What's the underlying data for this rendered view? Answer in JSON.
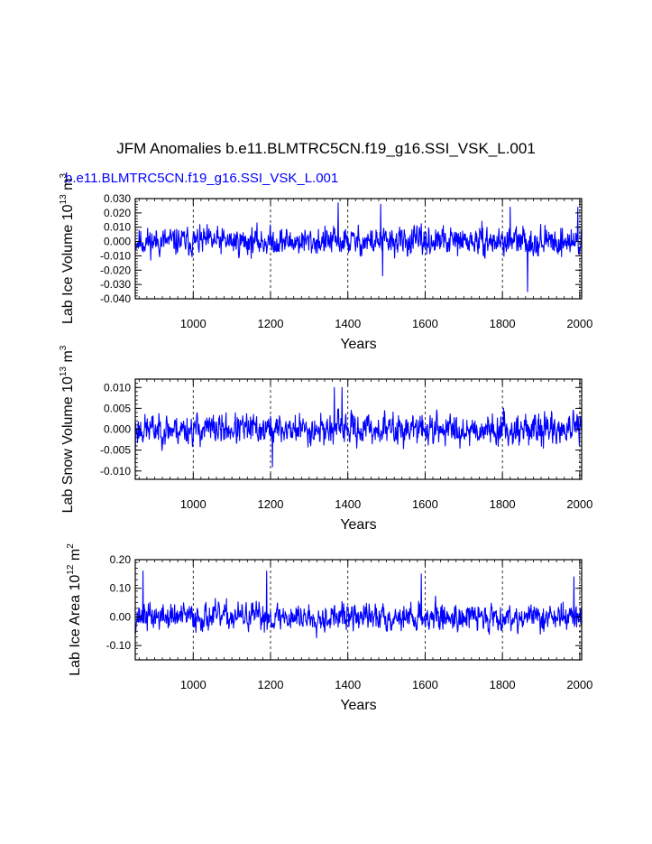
{
  "title": "JFM Anomalies b.e11.BLMTRC5CN.f19_g16.SSI_VSK_L.001",
  "run_label": "b.e11.BLMTRC5CN.f19_g16.SSI_VSK_L.001",
  "colors": {
    "series": "#0000ff",
    "axis": "#000000",
    "grid": "#000000",
    "background": "#ffffff"
  },
  "chart_data": [
    {
      "type": "line",
      "xlabel": "Years",
      "ylabel_prefix": "Lab Ice Volume 10",
      "ylabel_exp": "13",
      "ylabel_unit": "m",
      "ylabel_unit_exp": "3",
      "xlim": [
        850,
        2005
      ],
      "ylim": [
        -0.04,
        0.03
      ],
      "xticks": [
        1000,
        1200,
        1400,
        1600,
        1800,
        2000
      ],
      "yticks": [
        "0.030",
        "0.020",
        "0.010",
        "0.000",
        "-0.010",
        "-0.020",
        "-0.030",
        "-0.040"
      ],
      "ytick_values": [
        0.03,
        0.02,
        0.01,
        0.0,
        -0.01,
        -0.02,
        -0.03,
        -0.04
      ],
      "vgrid": [
        1000,
        1200,
        1400,
        1600,
        1800,
        2000
      ],
      "series": [
        {
          "name": "Lab Ice Volume",
          "x_start": 850,
          "x_end": 2005,
          "amplitude": 0.0085,
          "seed": 11,
          "spikes": [
            {
              "x": 1865,
              "y": -0.035
            },
            {
              "x": 1375,
              "y": 0.027
            },
            {
              "x": 1485,
              "y": 0.026
            },
            {
              "x": 1820,
              "y": 0.024
            },
            {
              "x": 1995,
              "y": 0.024
            },
            {
              "x": 1490,
              "y": -0.024
            }
          ]
        }
      ]
    },
    {
      "type": "line",
      "xlabel": "Years",
      "ylabel_prefix": "Lab Snow Volume 10",
      "ylabel_exp": "13",
      "ylabel_unit": "m",
      "ylabel_unit_exp": "3",
      "xlim": [
        850,
        2005
      ],
      "ylim": [
        -0.012,
        0.012
      ],
      "xticks": [
        1000,
        1200,
        1400,
        1600,
        1800,
        2000
      ],
      "yticks": [
        "0.010",
        "0.005",
        "0.000",
        "-0.005",
        "-0.010"
      ],
      "ytick_values": [
        0.01,
        0.005,
        0.0,
        -0.005,
        -0.01
      ],
      "vgrid": [
        1000,
        1200,
        1400,
        1600,
        1800,
        2000
      ],
      "series": [
        {
          "name": "Lab Snow Volume",
          "x_start": 850,
          "x_end": 2005,
          "amplitude": 0.0032,
          "seed": 23,
          "spikes": [
            {
              "x": 1365,
              "y": 0.01
            },
            {
              "x": 1385,
              "y": 0.01
            },
            {
              "x": 1205,
              "y": -0.009
            },
            {
              "x": 850,
              "y": -0.008
            }
          ]
        }
      ]
    },
    {
      "type": "line",
      "xlabel": "Years",
      "ylabel_prefix": "Lab Ice Area 10",
      "ylabel_exp": "12",
      "ylabel_unit": "m",
      "ylabel_unit_exp": "2",
      "xlim": [
        850,
        2005
      ],
      "ylim": [
        -0.15,
        0.2
      ],
      "xticks": [
        1000,
        1200,
        1400,
        1600,
        1800,
        2000
      ],
      "yticks": [
        "0.20",
        "0.10",
        "0.00",
        "-0.10"
      ],
      "ytick_values": [
        0.2,
        0.1,
        0.0,
        -0.1
      ],
      "vgrid": [
        1000,
        1200,
        1400,
        1600,
        1800,
        2000
      ],
      "series": [
        {
          "name": "Lab Ice Area",
          "x_start": 850,
          "x_end": 2005,
          "amplitude": 0.042,
          "seed": 37,
          "spikes": [
            {
              "x": 870,
              "y": 0.16
            },
            {
              "x": 1190,
              "y": 0.16
            },
            {
              "x": 1590,
              "y": 0.15
            },
            {
              "x": 1985,
              "y": 0.14
            }
          ]
        }
      ]
    }
  ]
}
